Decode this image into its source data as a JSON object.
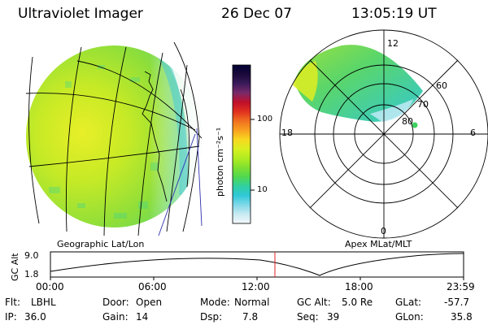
{
  "header": {
    "instrument": "Ultraviolet Imager",
    "date": "26 Dec 07",
    "time": "13:05:19 UT"
  },
  "colorbar": {
    "unit_label": "photon cm⁻²s⁻¹",
    "ticks": [
      "100",
      "10"
    ],
    "colors": [
      "#000033",
      "#1a0a3a",
      "#3a1a5a",
      "#7a2a6a",
      "#c0102a",
      "#e03020",
      "#f07020",
      "#f8a020",
      "#f8d820",
      "#d8f020",
      "#b0ec20",
      "#80e030",
      "#50d850",
      "#30d0a0",
      "#30c8d8",
      "#80d8e8",
      "#c8eaf2",
      "#f2f8fa"
    ],
    "accent": "#d8f020"
  },
  "geo_panel": {
    "label": "Geographic Lat/Lon"
  },
  "polar_panel": {
    "label": "Apex MLat/MLT",
    "mlt_labels": {
      "top": "12",
      "left": "18",
      "right": "6",
      "bottom": "0"
    },
    "lat_labels": [
      "60",
      "70",
      "80"
    ]
  },
  "altitude_plot": {
    "ylabel": "GC Alt",
    "yticks": [
      "9.0",
      "1.8"
    ],
    "xticks": [
      "00:00",
      "06:00",
      "12:00",
      "18:00",
      "23:59"
    ],
    "marker_color": "#e02020"
  },
  "info": {
    "flt_label": "Flt:",
    "flt": "LBHL",
    "ip_label": "IP:",
    "ip": "36.0",
    "door_label": "Door:",
    "door": "Open",
    "gain_label": "Gain:",
    "gain": "14",
    "mode_label": "Mode:",
    "mode": "Normal",
    "dsp_label": "Dsp:",
    "dsp": "7.8",
    "gcalt_label": "GC Alt:",
    "gcalt": "5.0 Re",
    "seq_label": "Seq:",
    "seq": "39",
    "glat_label": "GLat:",
    "glat": "-57.7",
    "glon_label": "GLon:",
    "glon": "35.8"
  }
}
